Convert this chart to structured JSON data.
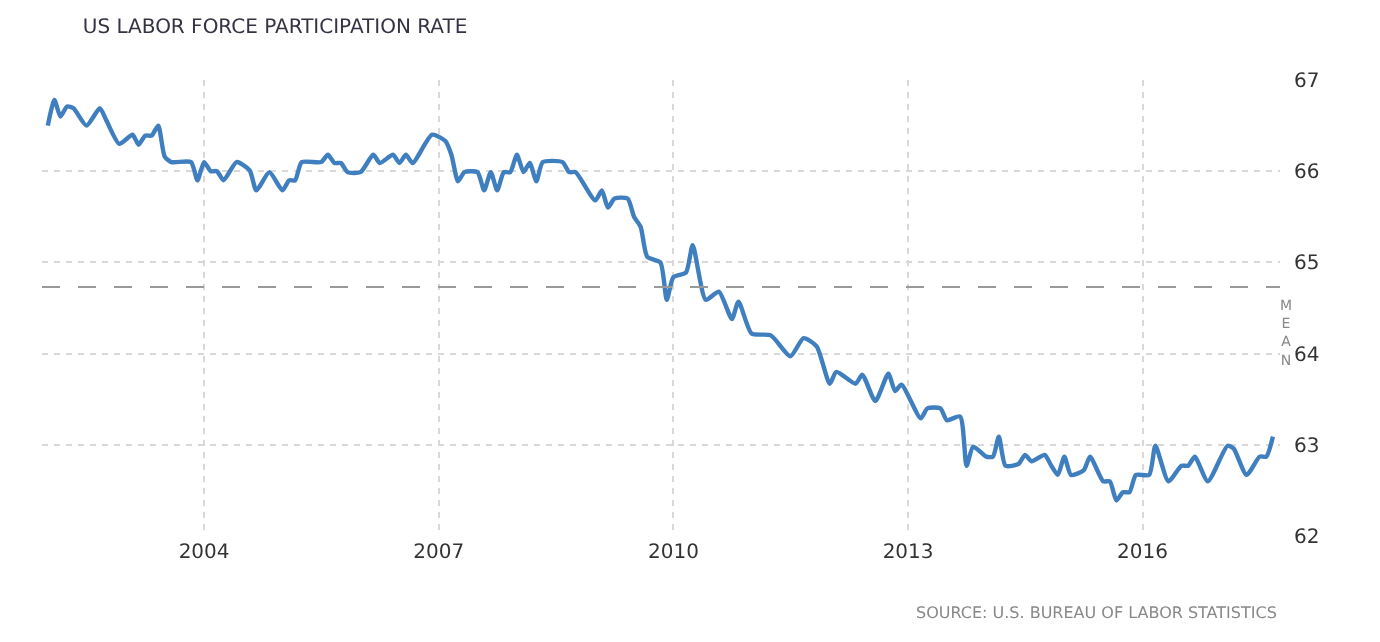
{
  "chart_data": {
    "type": "line",
    "title": "US LABOR FORCE PARTICIPATION RATE",
    "x": [
      "2002-01",
      "2002-02",
      "2002-03",
      "2002-04",
      "2002-05",
      "2002-07",
      "2002-09",
      "2002-10",
      "2002-12",
      "2003-02",
      "2003-03",
      "2003-04",
      "2003-05",
      "2003-06",
      "2003-07",
      "2003-08",
      "2003-11",
      "2003-12",
      "2004-01",
      "2004-02",
      "2004-03",
      "2004-04",
      "2004-06",
      "2004-08",
      "2004-09",
      "2004-11",
      "2005-01",
      "2005-02",
      "2005-03",
      "2005-04",
      "2005-07",
      "2005-08",
      "2005-09",
      "2005-10",
      "2005-11",
      "2006-01",
      "2006-03",
      "2006-04",
      "2006-06",
      "2006-07",
      "2006-08",
      "2006-09",
      "2006-12",
      "2007-02",
      "2007-03",
      "2007-04",
      "2007-05",
      "2007-07",
      "2007-08",
      "2007-09",
      "2007-10",
      "2007-11",
      "2007-12",
      "2008-01",
      "2008-02",
      "2008-03",
      "2008-04",
      "2008-05",
      "2008-08",
      "2008-09",
      "2008-10",
      "2009-01",
      "2009-02",
      "2009-03",
      "2009-04",
      "2009-06",
      "2009-07",
      "2009-08",
      "2009-09",
      "2009-11",
      "2009-12",
      "2010-01",
      "2010-03",
      "2010-04",
      "2010-06",
      "2010-08",
      "2010-10",
      "2010-11",
      "2011-01",
      "2011-04",
      "2011-07",
      "2011-09",
      "2011-11",
      "2012-01",
      "2012-02",
      "2012-05",
      "2012-06",
      "2012-08",
      "2012-10",
      "2012-11",
      "2012-12",
      "2013-03",
      "2013-04",
      "2013-06",
      "2013-07",
      "2013-09",
      "2013-10",
      "2013-11",
      "2014-01",
      "2014-02",
      "2014-03",
      "2014-04",
      "2014-06",
      "2014-07",
      "2014-08",
      "2014-10",
      "2014-11",
      "2014-12",
      "2015-01",
      "2015-02",
      "2015-04",
      "2015-05",
      "2015-07",
      "2015-08",
      "2015-09",
      "2015-10",
      "2015-11",
      "2015-12",
      "2016-02",
      "2016-03",
      "2016-05",
      "2016-07",
      "2016-08",
      "2016-09",
      "2016-11",
      "2017-02",
      "2017-03",
      "2017-05",
      "2017-07",
      "2017-08",
      "2017-09"
    ],
    "series": [
      {
        "color": "#3f7fbf",
        "values": [
          66.5,
          66.78,
          66.6,
          66.71,
          66.69,
          66.5,
          66.69,
          66.56,
          66.3,
          66.4,
          66.29,
          66.39,
          66.39,
          66.5,
          66.16,
          66.1,
          66.1,
          65.9,
          66.1,
          66.0,
          66.0,
          65.9,
          66.1,
          66.01,
          65.79,
          65.99,
          65.79,
          65.9,
          65.9,
          66.1,
          66.1,
          66.18,
          66.09,
          66.09,
          65.99,
          65.99,
          66.18,
          66.09,
          66.18,
          66.09,
          66.18,
          66.09,
          66.4,
          66.33,
          66.18,
          65.89,
          65.99,
          65.99,
          65.79,
          65.99,
          65.79,
          65.99,
          65.99,
          66.18,
          65.99,
          66.09,
          65.89,
          66.1,
          66.1,
          65.99,
          65.99,
          65.68,
          65.79,
          65.6,
          65.7,
          65.7,
          65.5,
          65.39,
          65.06,
          65.0,
          64.59,
          64.84,
          64.89,
          65.19,
          64.59,
          64.68,
          64.38,
          64.57,
          64.22,
          64.2,
          63.97,
          64.17,
          64.08,
          63.67,
          63.8,
          63.67,
          63.77,
          63.48,
          63.78,
          63.59,
          63.66,
          63.29,
          63.4,
          63.4,
          63.27,
          63.31,
          62.77,
          62.98,
          62.87,
          62.87,
          63.09,
          62.77,
          62.79,
          62.89,
          62.82,
          62.89,
          62.77,
          62.67,
          62.87,
          62.67,
          62.72,
          62.87,
          62.6,
          62.6,
          62.39,
          62.48,
          62.48,
          62.67,
          62.67,
          62.99,
          62.6,
          62.77,
          62.77,
          62.87,
          62.6,
          62.99,
          62.96,
          62.67,
          62.87,
          62.87,
          63.09
        ]
      }
    ],
    "xlim": [
      "2001-12-05",
      "2017-10-04"
    ],
    "xticks": [
      {
        "value": "2004",
        "label": "2004"
      },
      {
        "value": "2007",
        "label": "2007"
      },
      {
        "value": "2010",
        "label": "2010"
      },
      {
        "value": "2013",
        "label": "2013"
      },
      {
        "value": "2016",
        "label": "2016"
      }
    ],
    "ylim": [
      62,
      67
    ],
    "yticks": [
      62,
      63,
      64,
      65,
      66,
      67
    ],
    "grid": true,
    "ref_lines": [
      {
        "axis": "y",
        "value": 64.73,
        "label": "MEAN",
        "color": "#999999",
        "line_style": "dashed"
      }
    ],
    "annotations": [
      "SOURCE: U.S. BUREAU OF LABOR STATISTICS"
    ]
  }
}
